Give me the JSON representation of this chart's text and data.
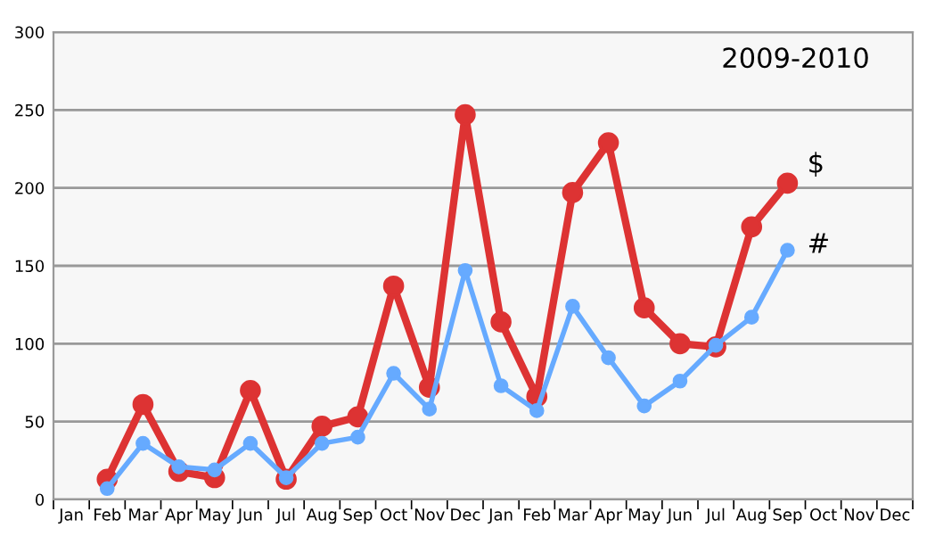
{
  "chart_data": {
    "type": "line",
    "title": "2009-2010",
    "categories": [
      "Jan",
      "Feb",
      "Mar",
      "Apr",
      "May",
      "Jun",
      "Jul",
      "Aug",
      "Sep",
      "Oct",
      "Nov",
      "Dec",
      "Jan",
      "Feb",
      "Mar",
      "Apr",
      "May",
      "Jun",
      "Jul",
      "Aug",
      "Sep",
      "Oct",
      "Nov",
      "Dec"
    ],
    "series": [
      {
        "name": "#",
        "color": "#66aaff",
        "values": [
          null,
          7,
          36,
          21,
          19,
          36,
          14,
          36,
          40,
          81,
          58,
          147,
          73,
          57,
          124,
          91,
          60,
          76,
          99,
          117,
          160,
          null,
          null,
          null
        ]
      },
      {
        "name": "$",
        "color": "#dd3333",
        "values": [
          null,
          13,
          61,
          18,
          14,
          70,
          13,
          47,
          53,
          137,
          72,
          247,
          114,
          66,
          197,
          229,
          123,
          100,
          98,
          175,
          203,
          null,
          null,
          null
        ]
      }
    ],
    "ylim": [
      0,
      300
    ],
    "yticks": [
      0,
      50,
      100,
      150,
      200,
      250,
      300
    ],
    "grid": "y",
    "marker": "circle",
    "line_style": "solid",
    "legend": false
  }
}
